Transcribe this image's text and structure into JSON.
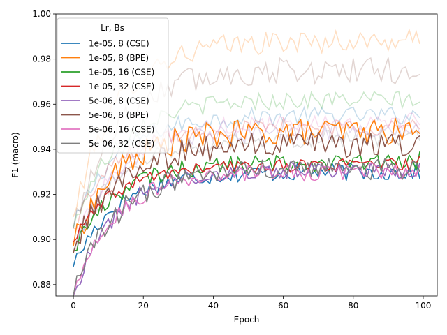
{
  "chart_data": {
    "type": "line",
    "xlabel": "Epoch",
    "ylabel": "F1 (macro)",
    "xlim": [
      -5,
      104
    ],
    "ylim": [
      0.875,
      1.0
    ],
    "xticks": [
      0,
      20,
      40,
      60,
      80,
      100
    ],
    "yticks": [
      0.88,
      0.9,
      0.92,
      0.94,
      0.96,
      0.98,
      1.0
    ],
    "xtick_labels": [
      "0",
      "20",
      "40",
      "60",
      "80",
      "100"
    ],
    "ytick_labels": [
      "0.88",
      "0.90",
      "0.92",
      "0.94",
      "0.96",
      "0.98",
      "1.00"
    ],
    "grid": false,
    "legend": {
      "title": "Lr, Bs",
      "position": "top-left"
    },
    "series": [
      {
        "name": "1e-05, 8 (CSE)",
        "color": "#1f77b4",
        "val_start": 0.888,
        "val_end": 0.927,
        "val_plateau": 0.93,
        "val_noise": 0.004,
        "bg_start": 0.905,
        "bg_plateau": 0.955,
        "bg_noise": 0.004
      },
      {
        "name": "1e-05, 8 (BPE)",
        "color": "#ff7f0e",
        "val_start": 0.897,
        "val_end": 0.947,
        "val_plateau": 0.948,
        "val_noise": 0.006,
        "bg_start": 0.91,
        "bg_plateau": 0.988,
        "bg_noise": 0.005
      },
      {
        "name": "1e-05, 16 (CSE)",
        "color": "#2ca02c",
        "val_start": 0.895,
        "val_end": 0.939,
        "val_plateau": 0.934,
        "val_noise": 0.004,
        "bg_start": 0.905,
        "bg_plateau": 0.962,
        "bg_noise": 0.004
      },
      {
        "name": "1e-05, 32 (CSE)",
        "color": "#d62728",
        "val_start": 0.899,
        "val_end": 0.937,
        "val_plateau": 0.933,
        "val_noise": 0.003,
        "bg_start": 0.905,
        "bg_plateau": 0.95,
        "bg_noise": 0.004
      },
      {
        "name": "5e-06, 8 (CSE)",
        "color": "#9467bd",
        "val_start": 0.875,
        "val_end": 0.934,
        "val_plateau": 0.931,
        "val_noise": 0.004,
        "bg_start": 0.895,
        "bg_plateau": 0.948,
        "bg_noise": 0.004
      },
      {
        "name": "5e-06, 8 (BPE)",
        "color": "#8c564b",
        "val_start": 0.894,
        "val_end": 0.946,
        "val_plateau": 0.942,
        "val_noise": 0.006,
        "bg_start": 0.905,
        "bg_plateau": 0.975,
        "bg_noise": 0.006
      },
      {
        "name": "5e-06, 16 (CSE)",
        "color": "#e377c2",
        "val_start": 0.875,
        "val_end": 0.933,
        "val_plateau": 0.93,
        "val_noise": 0.004,
        "bg_start": 0.895,
        "bg_plateau": 0.952,
        "bg_noise": 0.004
      },
      {
        "name": "5e-06, 32 (CSE)",
        "color": "#7f7f7f",
        "val_start": 0.875,
        "val_end": 0.93,
        "val_plateau": 0.931,
        "val_noise": 0.005,
        "bg_start": 0.895,
        "bg_plateau": 0.945,
        "bg_noise": 0.004
      }
    ]
  }
}
